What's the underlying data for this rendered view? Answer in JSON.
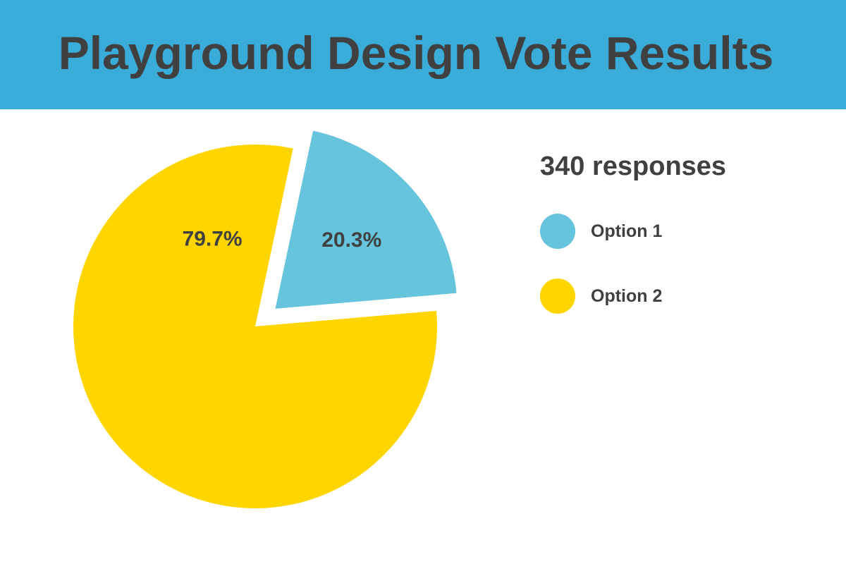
{
  "chart_data": {
    "type": "pie",
    "title": "Playground Design Vote Results",
    "subtitle": "340 responses",
    "categories": [
      "Option 1",
      "Option 2"
    ],
    "values": [
      20.3,
      79.7
    ],
    "unit": "%",
    "data_labels": [
      "20.3%",
      "79.7%"
    ],
    "colors": [
      "#66c4dc",
      "#ffd500"
    ],
    "exploded": "Option 1",
    "legend": "right"
  }
}
